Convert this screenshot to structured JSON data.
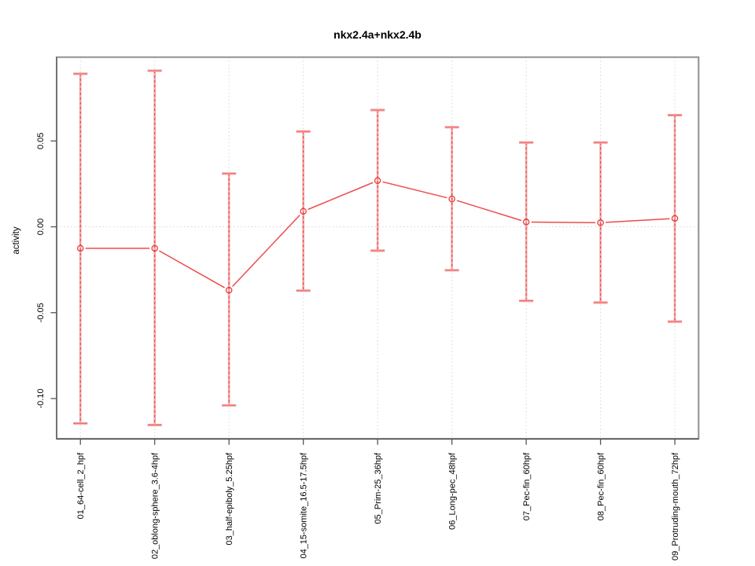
{
  "chart_data": {
    "type": "line",
    "title": "nkx2.4a+nkx2.4b",
    "xlabel": "",
    "ylabel": "activity",
    "legend": "none",
    "categories": [
      "01_64-cell_2_hpf",
      "02_oblong-sphere_3.6-4hpf",
      "03_half-epiboly_5.25hpf",
      "04_15-somite_16.5-17.5hpf",
      "05_Prim-25_36hpf",
      "06_Long-pec_48hpf",
      "07_Pec-fin_60hpf",
      "08_Pec-fin_60hpf",
      "09_Protruding-mouth_72hpf"
    ],
    "series": [
      {
        "name": "activity",
        "marker": "open-circle",
        "values": [
          -0.0125,
          -0.0125,
          -0.0369,
          0.009,
          0.0269,
          0.0162,
          0.0028,
          0.0024,
          0.0049
        ],
        "error_high": [
          0.0891,
          0.0909,
          0.031,
          0.0555,
          0.068,
          0.058,
          0.0491,
          0.0491,
          0.065
        ],
        "error_low": [
          -0.1145,
          -0.1154,
          -0.104,
          -0.0372,
          -0.0139,
          -0.0253,
          -0.0431,
          -0.0441,
          -0.0552
        ]
      }
    ],
    "yticks": [
      0.05,
      0,
      -0.05,
      -0.1
    ],
    "ytick_labels": [
      "0.05",
      "0.00",
      "-0.05",
      "-0.10"
    ],
    "ylim": [
      -0.1235,
      0.0988
    ],
    "grid": {
      "vertical_per_category": true,
      "horizontal_at_zero": true,
      "style": "dotted"
    },
    "colors": {
      "line": "#ef4b4b",
      "marker": "#e23c3c",
      "error_band": "#f6a6a6",
      "error_dash": "#e24848",
      "grid": "#d6d6d6",
      "box": "#909090",
      "axis": "#444444",
      "tick": "#555555",
      "text": "#000000",
      "background": "#ffffff"
    }
  }
}
